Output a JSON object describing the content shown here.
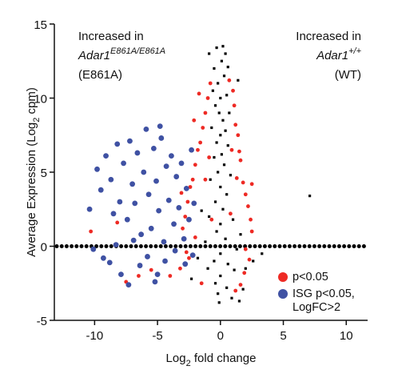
{
  "chart_data": {
    "type": "scatter",
    "x_label": {
      "before": "Log",
      "sub": "2",
      "after": " fold change"
    },
    "y_label": {
      "before": "Average Expression (Log",
      "sub": "2",
      "after": " cpm)"
    },
    "annotations": [
      {
        "line1": "Increased in",
        "gene": "Adar1",
        "sup": "E861A/E861A",
        "line3": "(E861A)"
      },
      {
        "line1": "Increased in",
        "gene": "Adar1",
        "sup": "+/+",
        "line3": "(WT)"
      }
    ],
    "xlim": [
      -13.2,
      11.7
    ],
    "ylim": [
      -5,
      15
    ],
    "xticks": [
      -10,
      -5,
      0,
      5,
      10
    ],
    "yticks": [
      -5,
      0,
      5,
      10,
      15
    ],
    "hline": 0,
    "series": [
      {
        "name": "p<0.05",
        "color": "#ee2a24",
        "x": [
          -0.8,
          0.7,
          -1,
          1,
          -1.2,
          1.1,
          -1.4,
          1.2,
          -1.6,
          1.4,
          -1.8,
          1.5,
          -2,
          1.6,
          -2.2,
          1.8,
          -2.4,
          2,
          -2.6,
          2.2,
          -2.8,
          2.4,
          -3,
          2.5,
          -2,
          2,
          -2.5,
          2.3,
          -3.2,
          1.9,
          -4,
          -5.5,
          -6.5,
          -7.5,
          -1.5,
          1.6,
          -1.2,
          1.3,
          -0.9,
          0.9,
          -2.1,
          2.5,
          -1.7,
          -3.1,
          -10.3,
          -8.2,
          1.2,
          -0.7,
          0.8,
          -2.7
        ],
        "values": [
          11,
          11.2,
          10,
          10.5,
          9,
          9.5,
          8,
          8.2,
          7,
          7.5,
          6.5,
          6.4,
          5.5,
          5.8,
          4.5,
          4.3,
          4,
          3.5,
          3,
          2.7,
          2,
          1.8,
          1.2,
          1,
          0.6,
          -0.2,
          -0.8,
          -0.9,
          -1.5,
          -1.8,
          -2,
          -1.6,
          -2,
          -2.4,
          -2.5,
          -2.6,
          4.5,
          4.6,
          6,
          6.5,
          8.5,
          4.2,
          10.3,
          3.6,
          1,
          1.6,
          -3,
          1.8,
          2.2,
          -0.4
        ]
      },
      {
        "name": "ISG p<0.05, LogFC>2",
        "color": "#3f51a3",
        "x": [
          -10.4,
          -9.8,
          -9.5,
          -9.1,
          -8.7,
          -8.5,
          -8.2,
          -8,
          -7.7,
          -7.4,
          -7.2,
          -7,
          -6.8,
          -6.6,
          -6.3,
          -6.1,
          -5.9,
          -5.7,
          -5.5,
          -5.3,
          -5.1,
          -4.9,
          -4.7,
          -4.5,
          -4.3,
          -4.1,
          -3.9,
          -3.7,
          -3.5,
          -3.3,
          -3.1,
          -2.9,
          -2.7,
          -2.5,
          -2.3,
          -2.1,
          -10.1,
          -9.3,
          -8.8,
          -7.9,
          -7.3,
          -6.4,
          -5.8,
          -5,
          -4.4,
          -3.6,
          -2.8,
          -2.2,
          -6.9,
          -8.3,
          -5.2,
          -4.8
        ],
        "values": [
          2.5,
          5.2,
          3.8,
          6.1,
          4.5,
          2.2,
          6.9,
          3,
          5.6,
          1.8,
          7.1,
          4.2,
          2.9,
          6.3,
          0.8,
          5,
          7.9,
          3.5,
          1.2,
          6.6,
          4.4,
          2.4,
          7.3,
          0.3,
          5.4,
          3.1,
          6.1,
          1.5,
          4.7,
          2.6,
          5.6,
          0.5,
          3.9,
          1.8,
          6.5,
          2.9,
          -0.2,
          -0.8,
          -1.1,
          -1.9,
          -2.6,
          -1.3,
          -0.7,
          -1.9,
          -1,
          -0.3,
          -1.2,
          -0.6,
          0.4,
          0.1,
          -2.4,
          8.1
        ]
      },
      {
        "color": "#000000",
        "x": [
          -0.3,
          0.2,
          0.4,
          -0.5,
          0.1,
          0.6,
          -0.2,
          0.3,
          -0.6,
          0.5,
          0,
          -0.4,
          0.7,
          -0.1,
          0.2,
          -0.7,
          0.4,
          0,
          -0.3,
          0.6,
          -0.5,
          0.1,
          0.3,
          -0.2,
          0.8,
          -0.8,
          0,
          0.5,
          -0.4,
          0.2,
          -0.9,
          1,
          0,
          -0.3,
          0.4,
          -1.2,
          1.3,
          0,
          -0.5,
          0.6,
          -1,
          1.1,
          0,
          -0.4,
          0.5,
          -0.2,
          0.9,
          1.5,
          -1.8,
          2,
          2.6,
          3.3,
          -2.3,
          7.1,
          1.4,
          -0.9,
          1.8,
          -0.1,
          1.6,
          -1.5
        ],
        "values": [
          13.4,
          13.5,
          13,
          12,
          12.5,
          12.1,
          11,
          11.5,
          10.5,
          10.2,
          10,
          9.5,
          9,
          9,
          8.5,
          8,
          7.8,
          7.5,
          7,
          6.8,
          6,
          6.2,
          5.5,
          5,
          4.8,
          4.5,
          4,
          3.5,
          3,
          2.5,
          2,
          1.8,
          1.5,
          1,
          0.5,
          0.3,
          -0.2,
          -0.5,
          -1,
          -1.2,
          -1.5,
          -1.6,
          -2,
          -2.5,
          -2.8,
          -3.2,
          -3.5,
          -3.7,
          -0.8,
          -1.5,
          -1,
          -0.5,
          -2.2,
          3.4,
          11.2,
          13,
          -2.9,
          -3.8,
          0.8,
          2.4
        ]
      }
    ]
  }
}
